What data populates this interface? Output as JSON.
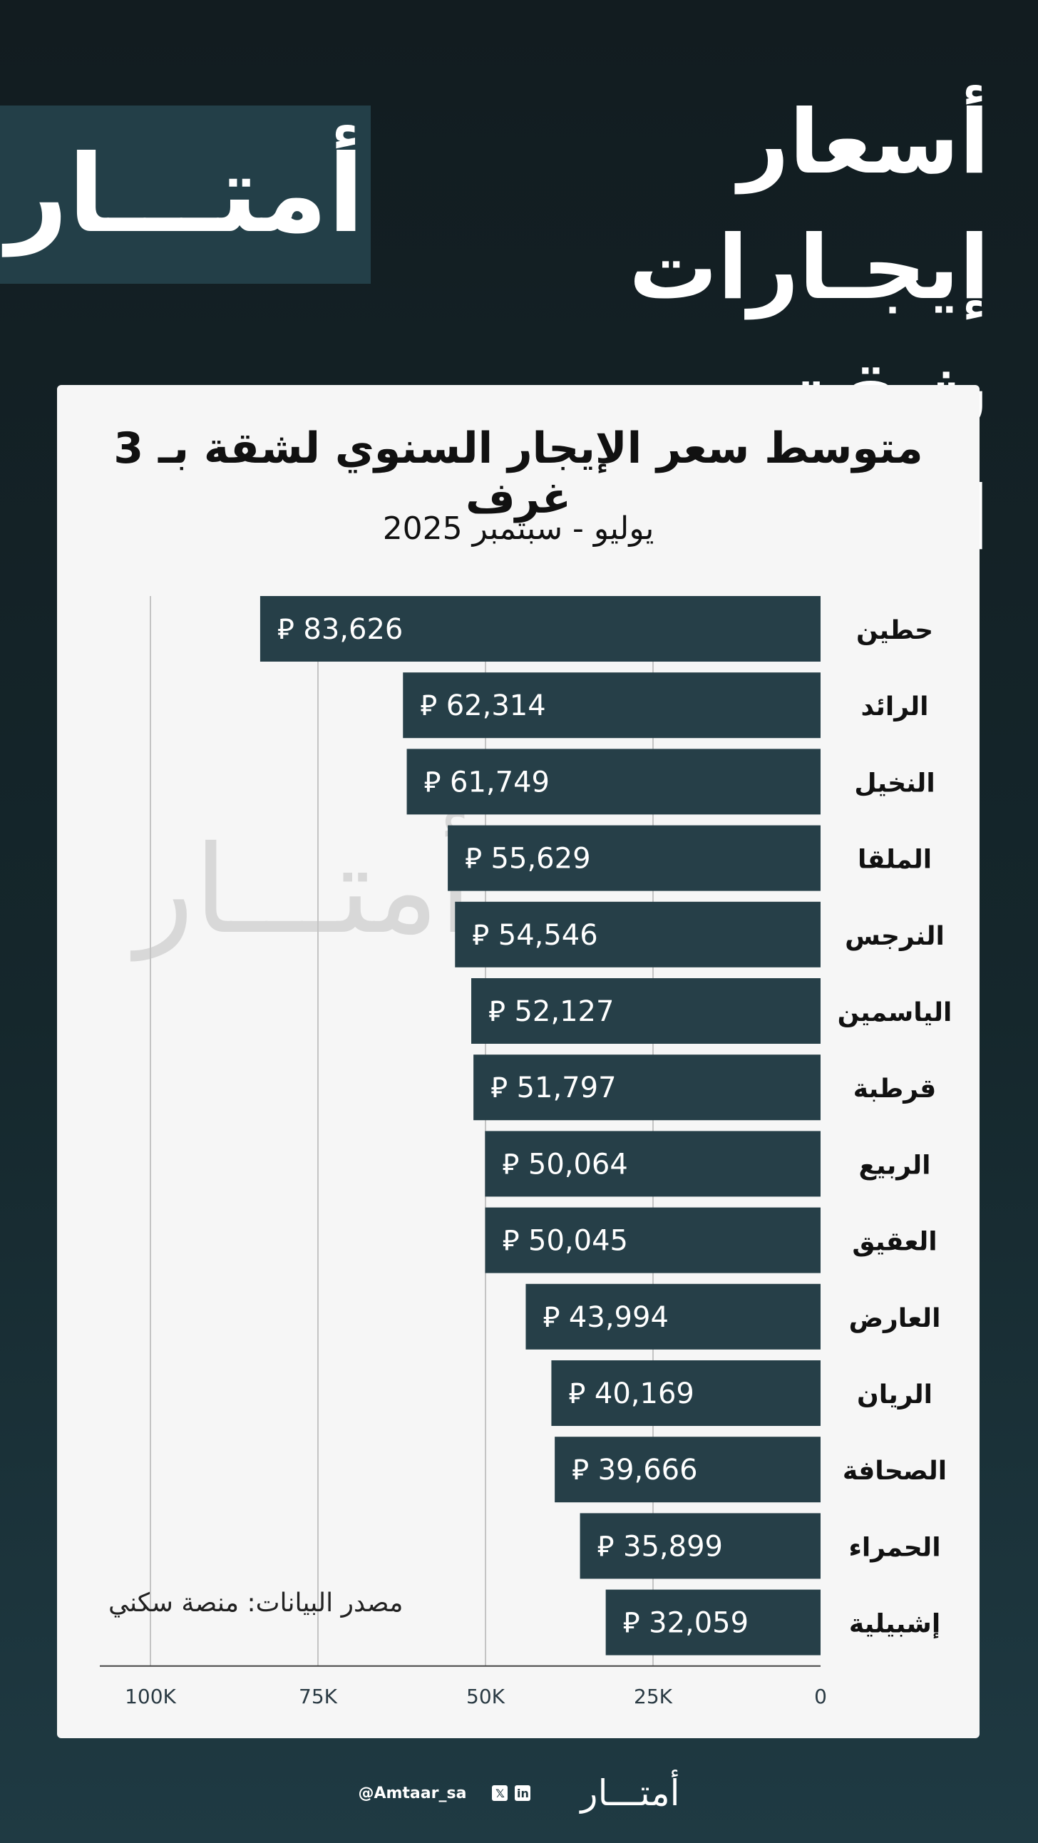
{
  "header": {
    "title_line1": "أسعار إيجـارات",
    "title_line2": "شقق الريـــاض",
    "brand": "أمتـــار"
  },
  "card": {
    "source": "مصدر البيانات: منصة سكني",
    "watermark": "أمتـــار"
  },
  "chart_data": {
    "type": "bar",
    "orientation": "horizontal",
    "title": "متوسط سعر الإيجار السنوي لشقة بـ 3 غرف",
    "subtitle": "يوليو - سبتمبر 2025",
    "currency_symbol": "⃁",
    "categories": [
      "حطين",
      "الرائد",
      "النخيل",
      "الملقا",
      "النرجس",
      "الياسمين",
      "قرطبة",
      "الربيع",
      "العقيق",
      "العارض",
      "الريان",
      "الصحافة",
      "الحمراء",
      "إشبيلية"
    ],
    "values": [
      83626,
      62314,
      61749,
      55629,
      54546,
      52127,
      51797,
      50064,
      50045,
      43994,
      40169,
      39666,
      35899,
      32059
    ],
    "value_labels": [
      "83,626",
      "62,314",
      "61,749",
      "55,629",
      "54,546",
      "52,127",
      "51,797",
      "50,064",
      "50,045",
      "43,994",
      "40,169",
      "39,666",
      "35,899",
      "32,059"
    ],
    "xlim": [
      0,
      100000
    ],
    "x_direction": "reversed",
    "xticks": [
      0,
      25000,
      50000,
      75000,
      100000
    ],
    "xtick_labels": [
      "0",
      "25K",
      "50K",
      "75K",
      "100K"
    ],
    "grid": true,
    "bar_color": "#263f48"
  },
  "footer": {
    "handle": "@Amtaar_sa",
    "icons": [
      "x-icon",
      "linkedin-icon"
    ],
    "brand": "أمتـــار"
  }
}
